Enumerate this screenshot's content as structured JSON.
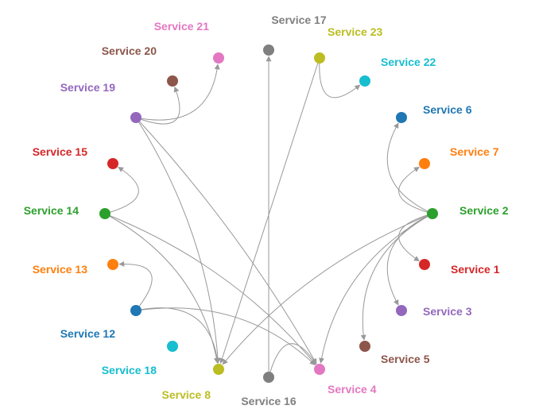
{
  "colors": {
    "edge": "#999999",
    "background": "#ffffff"
  },
  "nodes": [
    {
      "id": "s1",
      "label": "Service 1",
      "color": "#d62728"
    },
    {
      "id": "s2",
      "label": "Service 2",
      "color": "#2ca02c"
    },
    {
      "id": "s3",
      "label": "Service 3",
      "color": "#9467bd"
    },
    {
      "id": "s4",
      "label": "Service 4",
      "color": "#e377c2"
    },
    {
      "id": "s5",
      "label": "Service 5",
      "color": "#8c564b"
    },
    {
      "id": "s6",
      "label": "Service 6",
      "color": "#1f77b4"
    },
    {
      "id": "s7",
      "label": "Service 7",
      "color": "#ff7f0e"
    },
    {
      "id": "s8",
      "label": "Service 8",
      "color": "#bcbd22"
    },
    {
      "id": "s12",
      "label": "Service 12",
      "color": "#1f77b4"
    },
    {
      "id": "s13",
      "label": "Service 13",
      "color": "#ff7f0e"
    },
    {
      "id": "s14",
      "label": "Service 14",
      "color": "#2ca02c"
    },
    {
      "id": "s15",
      "label": "Service 15",
      "color": "#d62728"
    },
    {
      "id": "s16",
      "label": "Service 16",
      "color": "#7f7f7f"
    },
    {
      "id": "s17",
      "label": "Service 17",
      "color": "#7f7f7f"
    },
    {
      "id": "s18",
      "label": "Service 18",
      "color": "#17becf"
    },
    {
      "id": "s19",
      "label": "Service 19",
      "color": "#9467bd"
    },
    {
      "id": "s20",
      "label": "Service 20",
      "color": "#8c564b"
    },
    {
      "id": "s21",
      "label": "Service 21",
      "color": "#e377c2"
    },
    {
      "id": "s22",
      "label": "Service 22",
      "color": "#17becf"
    },
    {
      "id": "s23",
      "label": "Service 23",
      "color": "#bcbd22"
    }
  ],
  "edges": [
    {
      "source": "s2",
      "target": "s1"
    },
    {
      "source": "s2",
      "target": "s3"
    },
    {
      "source": "s2",
      "target": "s5"
    },
    {
      "source": "s2",
      "target": "s6"
    },
    {
      "source": "s2",
      "target": "s7"
    },
    {
      "source": "s2",
      "target": "s4"
    },
    {
      "source": "s2",
      "target": "s8"
    },
    {
      "source": "s14",
      "target": "s15"
    },
    {
      "source": "s14",
      "target": "s8"
    },
    {
      "source": "s14",
      "target": "s4"
    },
    {
      "source": "s12",
      "target": "s13"
    },
    {
      "source": "s12",
      "target": "s8"
    },
    {
      "source": "s12",
      "target": "s4"
    },
    {
      "source": "s19",
      "target": "s20"
    },
    {
      "source": "s19",
      "target": "s21"
    },
    {
      "source": "s19",
      "target": "s8"
    },
    {
      "source": "s19",
      "target": "s4"
    },
    {
      "source": "s23",
      "target": "s22"
    },
    {
      "source": "s23",
      "target": "s8"
    },
    {
      "source": "s16",
      "target": "s17"
    },
    {
      "source": "s16",
      "target": "s4"
    }
  ]
}
